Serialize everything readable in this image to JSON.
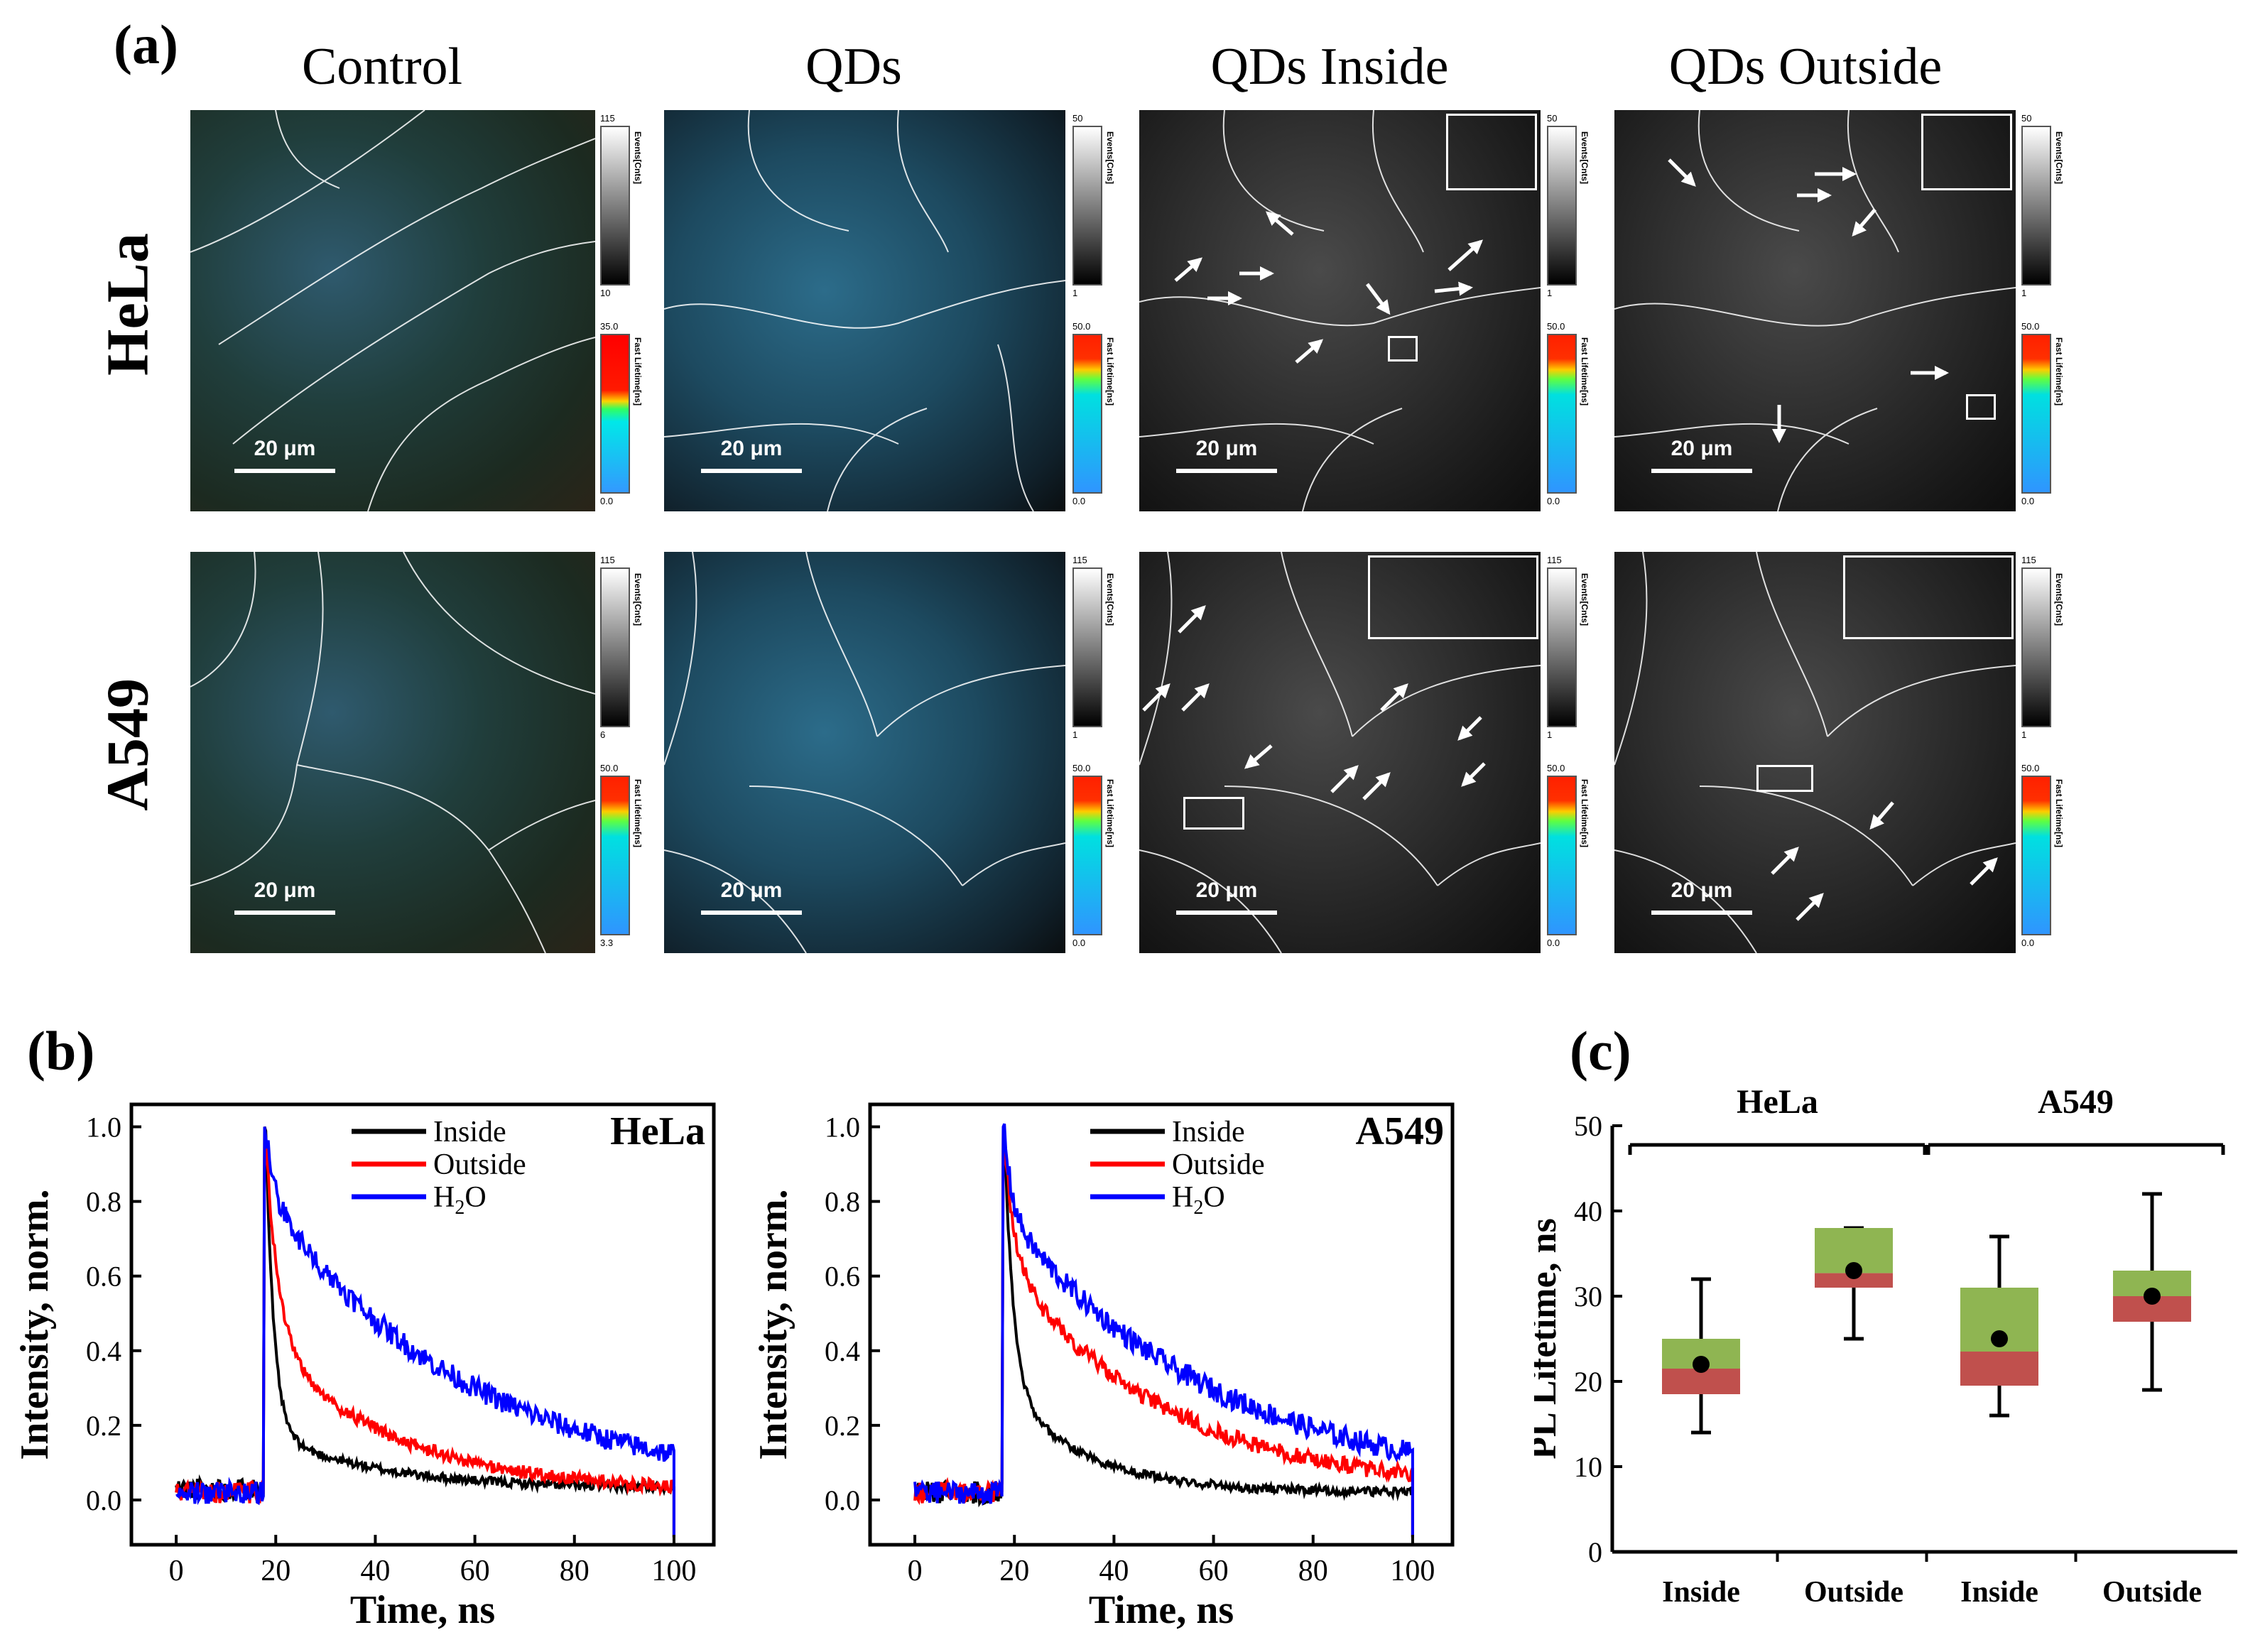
{
  "panel_labels": {
    "a": "(a)",
    "b": "(b)",
    "c": "(c)"
  },
  "columns": [
    "Control",
    "QDs",
    "QDs Inside",
    "QDs Outside"
  ],
  "rows": [
    "HeLa",
    "A549"
  ],
  "scalebar_label": "20 μm",
  "colorbar_titles": {
    "events": "Events[Cnts]",
    "lifetime": "Fast Lifetime[ns]"
  },
  "colorbars": {
    "hela": [
      {
        "events_max": "115",
        "events_min": "10",
        "life_max": "35.0",
        "life_min": "0.0"
      },
      {
        "events_max": "50",
        "events_min": "1",
        "life_max": "50.0",
        "life_min": "0.0"
      },
      {
        "events_max": "50",
        "events_min": "1",
        "life_max": "50.0",
        "life_min": "0.0"
      },
      {
        "events_max": "50",
        "events_min": "1",
        "life_max": "50.0",
        "life_min": "0.0"
      }
    ],
    "a549": [
      {
        "events_max": "115",
        "events_min": "6",
        "life_max": "50.0",
        "life_min": "3.3"
      },
      {
        "events_max": "115",
        "events_min": "1",
        "life_max": "50.0",
        "life_min": "0.0"
      },
      {
        "events_max": "115",
        "events_min": "1",
        "life_max": "50.0",
        "life_min": "0.0"
      },
      {
        "events_max": "115",
        "events_min": "1",
        "life_max": "50.0",
        "life_min": "0.0"
      }
    ]
  },
  "colors": {
    "inside": "#000000",
    "outside": "#ff0000",
    "h2o": "#0000ff",
    "box_upper": "#8fb552",
    "box_lower": "#c0504d"
  },
  "chart_data": [
    {
      "type": "line",
      "title": "HeLa",
      "xlabel": "Time, ns",
      "ylabel": "Intensity, norm.",
      "xlim": [
        -9,
        108
      ],
      "ylim": [
        -0.12,
        1.06
      ],
      "xticks": [
        "0",
        "20",
        "40",
        "60",
        "80",
        "100"
      ],
      "yticks": [
        "0.0",
        "0.2",
        "0.4",
        "0.6",
        "0.8",
        "1.0"
      ],
      "legend": [
        "Inside",
        "Outside",
        "H2O"
      ],
      "onset": 18,
      "end": 100,
      "series": [
        {
          "name": "Inside",
          "baseline": 0.03,
          "a1": 0.82,
          "tau1": 1.6,
          "a2": 0.15,
          "tau2": 22,
          "noise": 0.012
        },
        {
          "name": "Outside",
          "baseline": 0.02,
          "a1": 0.55,
          "tau1": 2.5,
          "a2": 0.4,
          "tau2": 26,
          "noise": 0.018
        },
        {
          "name": "H2O",
          "baseline": 0.02,
          "a1": 0.18,
          "tau1": 1.5,
          "a2": 0.8,
          "tau2": 40,
          "noise": 0.03
        }
      ]
    },
    {
      "type": "line",
      "title": "A549",
      "xlabel": "Time, ns",
      "ylabel": "Intensity, norm.",
      "xlim": [
        -9,
        108
      ],
      "ylim": [
        -0.12,
        1.06
      ],
      "xticks": [
        "0",
        "20",
        "40",
        "60",
        "80",
        "100"
      ],
      "yticks": [
        "0.0",
        "0.2",
        "0.4",
        "0.6",
        "0.8",
        "1.0"
      ],
      "legend": [
        "Inside",
        "Outside",
        "H2O"
      ],
      "onset": 18,
      "end": 100,
      "series": [
        {
          "name": "Inside",
          "baseline": 0.02,
          "a1": 0.68,
          "tau1": 1.8,
          "a2": 0.28,
          "tau2": 16,
          "noise": 0.012
        },
        {
          "name": "Outside",
          "baseline": 0.02,
          "a1": 0.32,
          "tau1": 2.0,
          "a2": 0.62,
          "tau2": 32,
          "noise": 0.022
        },
        {
          "name": "H2O",
          "baseline": 0.02,
          "a1": 0.22,
          "tau1": 1.5,
          "a2": 0.75,
          "tau2": 42,
          "noise": 0.03
        }
      ]
    },
    {
      "type": "box",
      "ylabel": "PL Lifetime, ns",
      "ylim": [
        0,
        50
      ],
      "yticks": [
        "0",
        "10",
        "20",
        "30",
        "40",
        "50"
      ],
      "categories": [
        "Inside",
        "Outside",
        "Inside",
        "Outside"
      ],
      "groups": [
        {
          "label": "HeLa",
          "members": [
            0,
            1
          ]
        },
        {
          "label": "A549",
          "members": [
            2,
            3
          ]
        }
      ],
      "boxes": [
        {
          "min": 14,
          "q1": 18.5,
          "median": 21.5,
          "q3": 25,
          "max": 32,
          "mean": 22
        },
        {
          "min": 25,
          "q1": 31,
          "median": 32.7,
          "q3": 38,
          "max": 38,
          "mean": 33
        },
        {
          "min": 16,
          "q1": 19.5,
          "median": 23.5,
          "q3": 31,
          "max": 37,
          "mean": 25
        },
        {
          "min": 19,
          "q1": 27,
          "median": 30,
          "q3": 33,
          "max": 42,
          "mean": 30
        }
      ]
    }
  ]
}
